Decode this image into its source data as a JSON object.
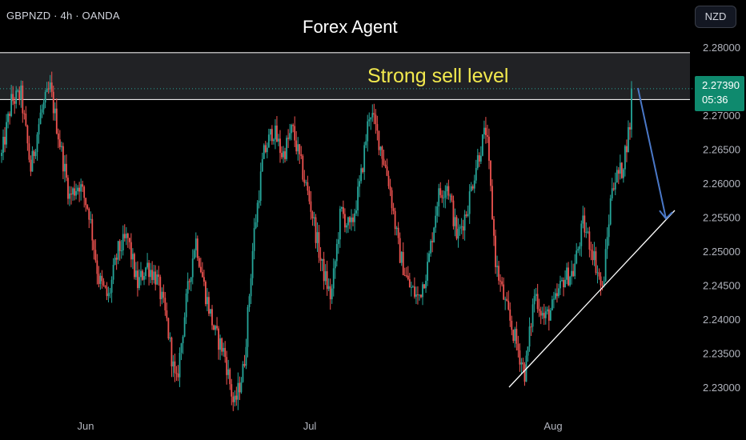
{
  "header": {
    "symbol": "GBPNZD · 4h · OANDA",
    "title": "Forex Agent",
    "currency_button": "NZD"
  },
  "annotations": {
    "zone_label": "Strong sell level",
    "zone_label_color": "#f2e94e"
  },
  "last_price": {
    "value": "2.27390",
    "countdown": "05:36",
    "color": "#0f8a6e"
  },
  "colors": {
    "up": "#26a69a",
    "down": "#ef5350",
    "background": "#000000",
    "arrow": "#4a78c8"
  },
  "chart_data": {
    "type": "candlestick",
    "y_axis": {
      "range": [
        2.2265,
        2.2825
      ],
      "ticks": [
        "2.28000",
        "2.27500",
        "2.27000",
        "2.26500",
        "2.26000",
        "2.25500",
        "2.25000",
        "2.24500",
        "2.24000",
        "2.23500",
        "2.23000"
      ]
    },
    "x_axis": {
      "labels": [
        "Jun",
        "Jul",
        "Aug"
      ]
    },
    "sell_zone": {
      "low": 2.2723,
      "high": 2.2792
    },
    "trendline": {
      "from_price": 2.23,
      "to_price": 2.256
    },
    "arrow": {
      "from_price": 2.274,
      "to_price": 2.2548
    },
    "price_path": [
      [
        2.264,
        2.26
      ],
      [
        2.272,
        2.273
      ],
      [
        2.273,
        2.26
      ],
      [
        2.262,
        2.258
      ],
      [
        2.27,
        2.2735
      ],
      [
        2.274,
        2.266
      ],
      [
        2.266,
        2.26
      ],
      [
        2.258,
        2.252
      ],
      [
        2.26,
        2.264
      ],
      [
        2.256,
        2.254
      ],
      [
        2.246,
        2.242
      ],
      [
        2.243,
        2.239
      ],
      [
        2.25,
        2.254
      ],
      [
        2.252,
        2.247
      ],
      [
        2.245,
        2.247
      ],
      [
        2.248,
        2.242
      ],
      [
        2.246,
        2.247
      ],
      [
        2.24,
        2.23
      ],
      [
        2.23,
        2.232
      ],
      [
        2.242,
        2.256
      ],
      [
        2.252,
        2.248
      ],
      [
        2.244,
        2.24
      ],
      [
        2.238,
        2.237
      ],
      [
        2.235,
        2.23
      ],
      [
        2.227,
        2.228
      ],
      [
        2.233,
        2.248
      ],
      [
        2.252,
        2.256
      ],
      [
        2.264,
        2.272
      ],
      [
        2.268,
        2.26
      ],
      [
        2.264,
        2.269
      ],
      [
        2.268,
        2.264
      ],
      [
        2.262,
        2.26
      ],
      [
        2.256,
        2.254
      ],
      [
        2.248,
        2.245
      ],
      [
        2.243,
        2.255
      ],
      [
        2.256,
        2.258
      ],
      [
        2.253,
        2.252
      ],
      [
        2.26,
        2.27
      ],
      [
        2.271,
        2.269
      ],
      [
        2.266,
        2.264
      ],
      [
        2.26,
        2.253
      ],
      [
        2.25,
        2.247
      ],
      [
        2.245,
        2.246
      ],
      [
        2.243,
        2.242
      ],
      [
        2.248,
        2.255
      ],
      [
        2.258,
        2.262
      ],
      [
        2.26,
        2.254
      ],
      [
        2.252,
        2.253
      ],
      [
        2.256,
        2.264
      ],
      [
        2.263,
        2.265
      ],
      [
        2.268,
        2.26
      ],
      [
        2.248,
        2.245
      ],
      [
        2.242,
        2.238
      ],
      [
        2.237,
        2.232
      ],
      [
        2.232,
        2.237
      ],
      [
        2.244,
        2.242
      ],
      [
        2.24,
        2.238
      ],
      [
        2.242,
        2.245
      ],
      [
        2.246,
        2.243
      ],
      [
        2.247,
        2.252
      ],
      [
        2.254,
        2.256
      ],
      [
        2.25,
        2.246
      ],
      [
        2.244,
        2.254
      ],
      [
        2.26,
        2.264
      ],
      [
        2.262,
        2.261
      ],
      [
        2.27,
        2.2739
      ]
    ]
  }
}
